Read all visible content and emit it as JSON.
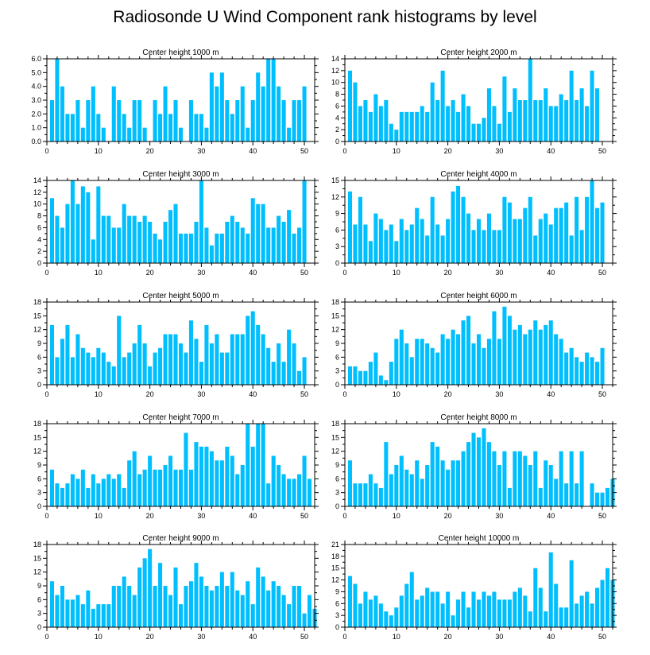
{
  "title": "Radiosonde U Wind Component rank histograms by level",
  "colors": {
    "bar": "#00bfff",
    "frame": "#000000"
  },
  "chart_data": [
    {
      "type": "bar",
      "title": "Center height 1000 m",
      "xlim": [
        0,
        52
      ],
      "ylim": [
        0,
        6
      ],
      "yticks": [
        0,
        1,
        2,
        3,
        4,
        5,
        6
      ],
      "ytick_labels": [
        "0.0",
        "1.0",
        "2.0",
        "3.0",
        "4.0",
        "5.0",
        "6.0"
      ],
      "xticks": [
        0,
        10,
        20,
        30,
        40,
        50
      ],
      "values": [
        3,
        6,
        4,
        2,
        2,
        3,
        1,
        3,
        4,
        2,
        1,
        0,
        4,
        3,
        2,
        1,
        3,
        3,
        1,
        0,
        3,
        2,
        4,
        2,
        3,
        1,
        0,
        3,
        2,
        2,
        1,
        5,
        4,
        5,
        3,
        2,
        3,
        4,
        1,
        3,
        5,
        4,
        6,
        6,
        4,
        3,
        1,
        3,
        3,
        4
      ]
    },
    {
      "type": "bar",
      "title": "Center height 2000 m",
      "xlim": [
        0,
        52
      ],
      "ylim": [
        0,
        14
      ],
      "yticks": [
        0,
        2,
        4,
        6,
        8,
        10,
        12,
        14
      ],
      "ytick_labels": [
        "0",
        "2",
        "4",
        "6",
        "8",
        "10",
        "12",
        "14"
      ],
      "xticks": [
        0,
        10,
        20,
        30,
        40,
        50
      ],
      "values": [
        12,
        10,
        6,
        7,
        5,
        8,
        6,
        7,
        3,
        2,
        5,
        5,
        5,
        5,
        6,
        5,
        10,
        7,
        12,
        6,
        7,
        5,
        8,
        6,
        3,
        3,
        4,
        9,
        6,
        3,
        11,
        5,
        9,
        7,
        7,
        14,
        7,
        7,
        9,
        6,
        6,
        8,
        7,
        12,
        7,
        9,
        6,
        12,
        9
      ]
    },
    {
      "type": "bar",
      "title": "Center height 3000 m",
      "xlim": [
        0,
        52
      ],
      "ylim": [
        0,
        14
      ],
      "yticks": [
        0,
        2,
        4,
        6,
        8,
        10,
        12,
        14
      ],
      "ytick_labels": [
        "0",
        "2",
        "4",
        "6",
        "8",
        "10",
        "12",
        "14"
      ],
      "xticks": [
        0,
        10,
        20,
        30,
        40,
        50
      ],
      "values": [
        11,
        8,
        6,
        10,
        14,
        10,
        13,
        12,
        4,
        13,
        8,
        8,
        6,
        6,
        10,
        8,
        8,
        7,
        8,
        7,
        5,
        4,
        7,
        9,
        10,
        5,
        5,
        5,
        7,
        14,
        6,
        3,
        5,
        5,
        7,
        8,
        7,
        6,
        5,
        11,
        10,
        10,
        6,
        6,
        8,
        7,
        9,
        5,
        6,
        14
      ]
    },
    {
      "type": "bar",
      "title": "Center height 4000 m",
      "xlim": [
        0,
        52
      ],
      "ylim": [
        0,
        15
      ],
      "yticks": [
        0,
        3,
        6,
        9,
        12,
        15
      ],
      "ytick_labels": [
        "0",
        "3",
        "6",
        "9",
        "12",
        "15"
      ],
      "xticks": [
        0,
        10,
        20,
        30,
        40,
        50
      ],
      "values": [
        13,
        7,
        12,
        7,
        4,
        9,
        8,
        6,
        7,
        4,
        8,
        6,
        7,
        10,
        8,
        5,
        12,
        7,
        5,
        8,
        13,
        14,
        12,
        9,
        6,
        8,
        6,
        9,
        6,
        6,
        12,
        11,
        8,
        8,
        10,
        12,
        5,
        8,
        9,
        7,
        10,
        10,
        11,
        5,
        12,
        6,
        12,
        15,
        10,
        11
      ]
    },
    {
      "type": "bar",
      "title": "Center height 5000 m",
      "xlim": [
        0,
        52
      ],
      "ylim": [
        0,
        18
      ],
      "yticks": [
        0,
        3,
        6,
        9,
        12,
        15,
        18
      ],
      "ytick_labels": [
        "0",
        "3",
        "6",
        "9",
        "12",
        "15",
        "18"
      ],
      "xticks": [
        0,
        10,
        20,
        30,
        40,
        50
      ],
      "values": [
        13,
        6,
        10,
        13,
        6,
        11,
        8,
        7,
        6,
        8,
        7,
        5,
        4,
        15,
        6,
        7,
        9,
        13,
        9,
        4,
        7,
        8,
        11,
        11,
        11,
        9,
        7,
        14,
        10,
        5,
        13,
        9,
        11,
        7,
        7,
        11,
        11,
        11,
        15,
        16,
        13,
        11,
        8,
        5,
        9,
        5,
        12,
        9,
        3,
        6
      ]
    },
    {
      "type": "bar",
      "title": "Center height 6000 m",
      "xlim": [
        0,
        52
      ],
      "ylim": [
        0,
        18
      ],
      "yticks": [
        0,
        3,
        6,
        9,
        12,
        15,
        18
      ],
      "ytick_labels": [
        "0",
        "3",
        "6",
        "9",
        "12",
        "15",
        "18"
      ],
      "xticks": [
        0,
        10,
        20,
        30,
        40,
        50
      ],
      "values": [
        4,
        4,
        3,
        3,
        5,
        7,
        2,
        1,
        5,
        10,
        12,
        9,
        6,
        10,
        10,
        9,
        8,
        7,
        11,
        10,
        12,
        11,
        14,
        15,
        9,
        11,
        8,
        10,
        16,
        10,
        17,
        15,
        12,
        13,
        11,
        12,
        14,
        12,
        13,
        14,
        11,
        10,
        7,
        8,
        6,
        5,
        7,
        6,
        5,
        8
      ]
    },
    {
      "type": "bar",
      "title": "Center height 7000 m",
      "xlim": [
        0,
        52
      ],
      "ylim": [
        0,
        18
      ],
      "yticks": [
        0,
        3,
        6,
        9,
        12,
        15,
        18
      ],
      "ytick_labels": [
        "0",
        "3",
        "6",
        "9",
        "12",
        "15",
        "18"
      ],
      "xticks": [
        0,
        10,
        20,
        30,
        40,
        50
      ],
      "values": [
        8,
        5,
        4,
        5,
        7,
        6,
        8,
        4,
        7,
        5,
        6,
        7,
        6,
        7,
        4,
        10,
        12,
        7,
        8,
        11,
        8,
        8,
        9,
        11,
        8,
        8,
        16,
        8,
        14,
        13,
        13,
        12,
        10,
        10,
        13,
        11,
        7,
        9,
        18,
        13,
        18,
        18,
        5,
        11,
        9,
        7,
        6,
        6,
        7,
        11,
        6
      ]
    },
    {
      "type": "bar",
      "title": "Center height 8000 m",
      "xlim": [
        0,
        52
      ],
      "ylim": [
        0,
        18
      ],
      "yticks": [
        0,
        3,
        6,
        9,
        12,
        15,
        18
      ],
      "ytick_labels": [
        "0",
        "3",
        "6",
        "9",
        "12",
        "15",
        "18"
      ],
      "xticks": [
        0,
        10,
        20,
        30,
        40,
        50
      ],
      "values": [
        10,
        5,
        5,
        5,
        7,
        5,
        4,
        14,
        7,
        9,
        11,
        8,
        7,
        10,
        6,
        9,
        14,
        13,
        10,
        8,
        10,
        10,
        12,
        14,
        16,
        15,
        17,
        14,
        12,
        9,
        12,
        4,
        12,
        12,
        11,
        9,
        12,
        4,
        10,
        9,
        6,
        12,
        5,
        12,
        5,
        12,
        0,
        5,
        3,
        3,
        4,
        6
      ]
    },
    {
      "type": "bar",
      "title": "Center height 9000 m",
      "xlim": [
        0,
        52
      ],
      "ylim": [
        0,
        18
      ],
      "yticks": [
        0,
        3,
        6,
        9,
        12,
        15,
        18
      ],
      "ytick_labels": [
        "0",
        "3",
        "6",
        "9",
        "12",
        "15",
        "18"
      ],
      "xticks": [
        0,
        10,
        20,
        30,
        40,
        50
      ],
      "values": [
        10,
        7,
        9,
        6,
        6,
        7,
        5,
        8,
        4,
        5,
        5,
        5,
        9,
        9,
        11,
        9,
        7,
        13,
        15,
        17,
        9,
        14,
        9,
        7,
        13,
        5,
        9,
        10,
        14,
        11,
        9,
        8,
        9,
        12,
        9,
        12,
        8,
        7,
        10,
        5,
        13,
        11,
        8,
        10,
        9,
        7,
        5,
        9,
        9,
        3,
        7,
        4
      ]
    },
    {
      "type": "bar",
      "title": "Center height 10000 m",
      "xlim": [
        0,
        52
      ],
      "ylim": [
        0,
        21
      ],
      "yticks": [
        0,
        3,
        6,
        9,
        12,
        15,
        18,
        21
      ],
      "ytick_labels": [
        "0",
        "3",
        "6",
        "9",
        "12",
        "15",
        "18",
        "21"
      ],
      "xticks": [
        0,
        10,
        20,
        30,
        40,
        50
      ],
      "values": [
        13,
        11,
        6,
        9,
        7,
        8,
        6,
        4,
        3,
        5,
        8,
        11,
        14,
        7,
        8,
        10,
        9,
        9,
        6,
        9,
        3,
        7,
        9,
        5,
        9,
        7,
        9,
        8,
        9,
        7,
        7,
        7,
        9,
        10,
        8,
        4,
        15,
        10,
        4,
        19,
        11,
        5,
        5,
        17,
        6,
        8,
        9,
        6,
        10,
        12,
        15,
        12
      ]
    }
  ]
}
